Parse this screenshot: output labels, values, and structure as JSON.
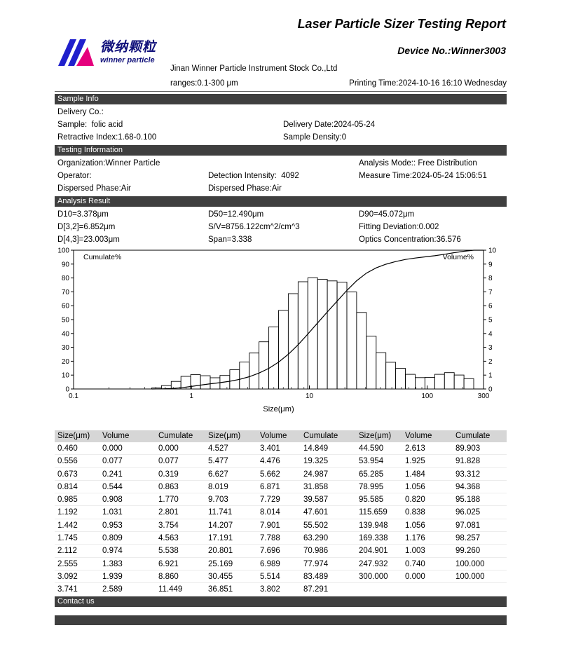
{
  "report": {
    "title": "Laser Particle Sizer Testing Report",
    "device_no": "Device No.:Winner3003",
    "logo_cn": "微纳颗粒",
    "logo_en": "winner particle",
    "brand_blue": "#2020cc",
    "brand_magenta": "#e5007d",
    "company": "Jinan Winner Particle Instrument Stock Co.,Ltd",
    "ranges": "ranges:0.1-300 μm",
    "printing_time": "Printing Time:2024-10-16 16:10 Wednesday"
  },
  "sections": {
    "sample_info": {
      "header": "Sample Info",
      "rows": [
        {
          "c1": "Delivery Co.:",
          "c2": ""
        },
        {
          "c1": "Sample:  folic acid",
          "c2": "Delivery Date:2024-05-24"
        },
        {
          "c1": "Retractive Index:1.68-0.100",
          "c2": "Sample Density:0"
        }
      ]
    },
    "testing_info": {
      "header": "Testing Information",
      "rows": [
        {
          "c1": "Organization:Winner Particle",
          "c2": "",
          "c3": "Analysis Mode:: Free Distribution"
        },
        {
          "c1": "Operator:",
          "c2": "Detection Intensity:  4092",
          "c3": "Measure Time:2024-05-24 15:06:51"
        },
        {
          "c1": "Dispersed Phase:Air",
          "c2": "Dispersed Phase:Air",
          "c3": ""
        }
      ]
    },
    "analysis_result": {
      "header": "Analysis Result",
      "rows": [
        {
          "c1": "D10=3.378μm",
          "c2": "D50=12.490μm",
          "c3": "D90=45.072μm"
        },
        {
          "c1": "D[3,2]=6.852μm",
          "c2": "S/V=8756.122cm^2/cm^3",
          "c3": "Fitting Deviation:0.002"
        },
        {
          "c1": "D[4,3]=23.003μm",
          "c2": "Span=3.338",
          "c3": "Optics Concentration:36.576"
        }
      ]
    },
    "contact": {
      "header": "Contact us"
    }
  },
  "chart_data": {
    "type": "bar",
    "subtype": "log-histogram-with-cumulative-line",
    "x_scale": "log",
    "x_range": [
      0.1,
      300
    ],
    "x_ticks": [
      0.1,
      1,
      10,
      100,
      300
    ],
    "xlabel": "Size(μm)",
    "grid": false,
    "left_axis": {
      "label": "Cumulate%",
      "range": [
        0,
        100
      ],
      "ticks": [
        0,
        10,
        20,
        30,
        40,
        50,
        60,
        70,
        80,
        90,
        100
      ]
    },
    "right_axis": {
      "label": "Volume%",
      "range": [
        0,
        10
      ],
      "ticks": [
        0,
        1,
        2,
        3,
        4,
        5,
        6,
        7,
        8,
        9,
        10
      ]
    },
    "sizes": [
      0.46,
      0.556,
      0.673,
      0.814,
      0.985,
      1.192,
      1.442,
      1.745,
      2.112,
      2.555,
      3.092,
      3.741,
      4.527,
      5.477,
      6.627,
      8.019,
      9.703,
      11.741,
      14.207,
      17.191,
      20.801,
      25.169,
      30.455,
      36.851,
      44.59,
      53.954,
      65.285,
      78.995,
      95.585,
      115.659,
      139.948,
      169.338,
      204.901,
      247.932,
      300.0
    ],
    "series": [
      {
        "name": "Volume%",
        "type": "bar",
        "axis": "right",
        "values": [
          0.0,
          0.077,
          0.241,
          0.544,
          0.908,
          1.031,
          0.953,
          0.809,
          0.974,
          1.383,
          1.939,
          2.589,
          3.401,
          4.476,
          5.662,
          6.871,
          7.729,
          8.014,
          7.901,
          7.788,
          7.696,
          6.989,
          5.514,
          3.802,
          2.613,
          1.925,
          1.484,
          1.056,
          0.82,
          0.838,
          1.056,
          1.176,
          1.003,
          0.74,
          0.0
        ]
      },
      {
        "name": "Cumulate%",
        "type": "line",
        "axis": "left",
        "values": [
          0.0,
          0.077,
          0.319,
          0.863,
          1.77,
          2.801,
          3.754,
          4.563,
          5.538,
          6.921,
          8.86,
          11.449,
          14.849,
          19.325,
          24.987,
          31.858,
          39.587,
          47.601,
          55.502,
          63.29,
          70.986,
          77.974,
          83.489,
          87.291,
          89.903,
          91.828,
          93.312,
          94.368,
          95.188,
          96.025,
          97.081,
          98.257,
          99.26,
          100.0,
          100.0
        ]
      }
    ]
  },
  "table": {
    "headers": [
      "Size(μm)",
      "Volume",
      "Cumulate",
      "Size(μm)",
      "Volume",
      "Cumulate",
      "Size(μm)",
      "Volume",
      "Cumulate"
    ],
    "rows_per_column": 12
  }
}
